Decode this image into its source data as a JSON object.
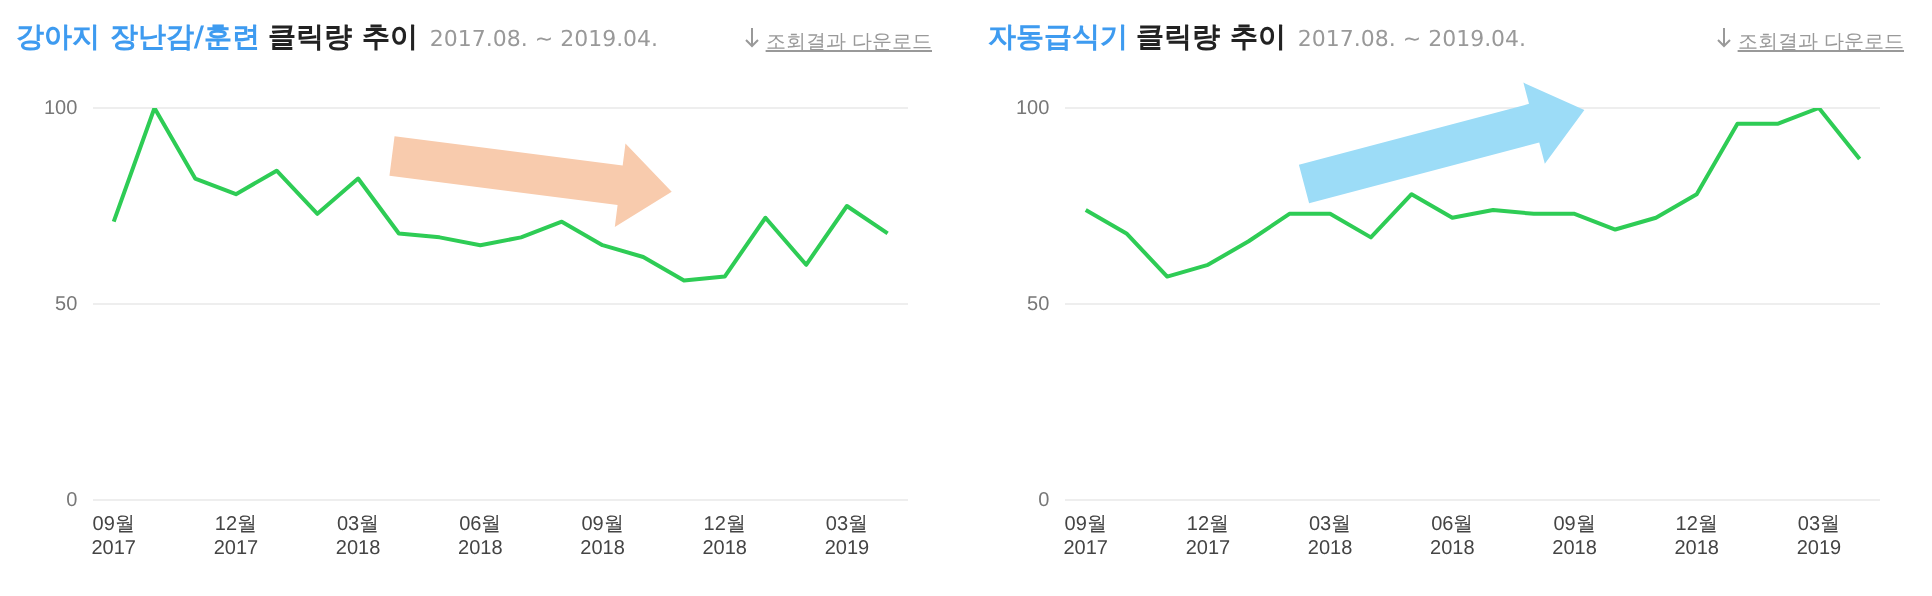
{
  "chart_data": [
    {
      "type": "line",
      "title": "강아지 장난감/훈련",
      "subtitle": "클릭량 추이",
      "annotations": [
        "2017.08. ~ 2019.04.",
        "조회결과 다운로드"
      ],
      "categories": [
        "09월\n2017",
        null,
        null,
        "12월\n2017",
        null,
        null,
        "03월\n2018",
        null,
        null,
        "06월\n2018",
        null,
        null,
        "09월\n2018",
        null,
        null,
        "12월\n2018",
        null,
        null,
        "03월\n2019",
        null
      ],
      "values": [
        71,
        100,
        82,
        78,
        84,
        73,
        82,
        68,
        67,
        65,
        67,
        71,
        65,
        62,
        56,
        57,
        72,
        60,
        75,
        68
      ],
      "color": "#2ecc55",
      "ylim": [
        0,
        100
      ],
      "yticks": [
        0,
        50,
        100
      ],
      "grid": "y",
      "marker": "none"
    },
    {
      "type": "line",
      "title": "자동급식기",
      "subtitle": "클릭량 추이",
      "annotations": [
        "2017.08. ~ 2019.04.",
        "조회결과 다운로드"
      ],
      "categories": [
        "09월\n2017",
        null,
        null,
        "12월\n2017",
        null,
        null,
        "03월\n2018",
        null,
        null,
        "06월\n2018",
        null,
        null,
        "09월\n2018",
        null,
        null,
        "12월\n2018",
        null,
        null,
        "03월\n2019",
        null
      ],
      "values": [
        74,
        68,
        57,
        60,
        66,
        73,
        73,
        67,
        78,
        72,
        74,
        73,
        73,
        69,
        72,
        78,
        96,
        96,
        100,
        87
      ],
      "color": "#2ecc55",
      "ylim": [
        0,
        100
      ],
      "yticks": [
        0,
        50,
        100
      ],
      "grid": "y",
      "marker": "none"
    }
  ]
}
